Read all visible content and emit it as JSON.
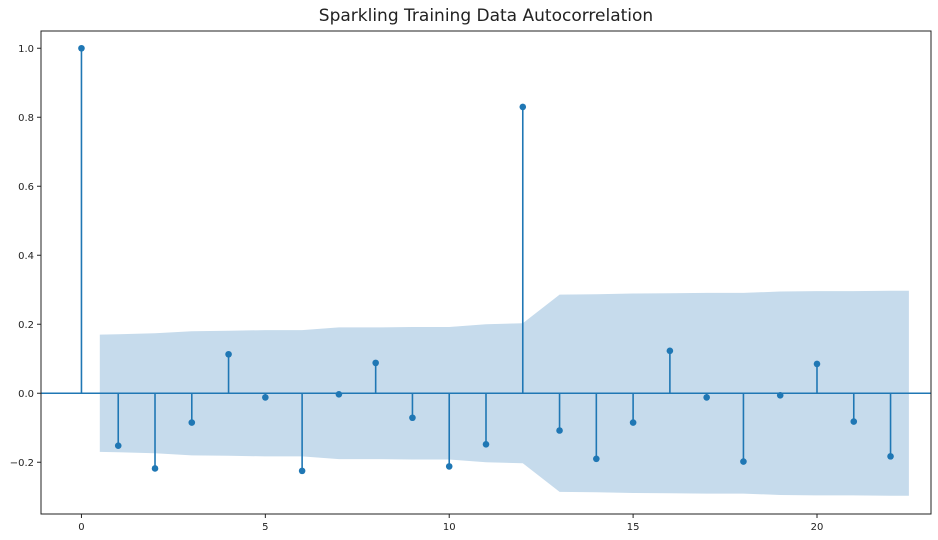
{
  "chart_data": {
    "type": "stem",
    "title": "Sparkling Training Data Autocorrelation",
    "xlabel": "",
    "ylabel": "",
    "xlim": [
      -1.1,
      23.1
    ],
    "ylim": [
      -0.35,
      1.05
    ],
    "xticks": [
      0,
      5,
      10,
      15,
      20
    ],
    "yticks": [
      -0.2,
      0.0,
      0.2,
      0.4,
      0.6,
      0.8,
      1.0
    ],
    "ytick_labels": [
      "−0.2",
      "0.0",
      "0.2",
      "0.4",
      "0.6",
      "0.8",
      "1.0"
    ],
    "grid": false,
    "colors": {
      "stem": "#1f77b4",
      "band": "#c6dbec",
      "zero_line": "#1f77b4"
    },
    "series": [
      {
        "x": [
          0,
          1,
          2,
          3,
          4,
          5,
          6,
          7,
          8,
          9,
          10,
          11,
          12,
          13,
          14,
          15,
          16,
          17,
          18,
          19,
          20,
          21,
          22
        ],
        "values": [
          1.0,
          -0.152,
          -0.218,
          -0.085,
          0.113,
          -0.012,
          -0.225,
          -0.003,
          0.088,
          -0.071,
          -0.212,
          -0.148,
          0.83,
          -0.108,
          -0.19,
          -0.085,
          0.123,
          -0.012,
          -0.198,
          -0.006,
          0.085,
          -0.082,
          -0.183
        ]
      }
    ],
    "confidence_band": {
      "x": [
        0.5,
        1,
        2,
        3,
        4,
        5,
        6,
        7,
        8,
        9,
        10,
        11,
        12,
        13,
        14,
        15,
        16,
        17,
        18,
        19,
        20,
        21,
        22,
        22.5
      ],
      "upper": [
        0.17,
        0.171,
        0.174,
        0.18,
        0.181,
        0.183,
        0.183,
        0.191,
        0.191,
        0.192,
        0.192,
        0.2,
        0.203,
        0.286,
        0.287,
        0.289,
        0.29,
        0.291,
        0.291,
        0.295,
        0.296,
        0.296,
        0.297,
        0.297
      ]
    }
  }
}
